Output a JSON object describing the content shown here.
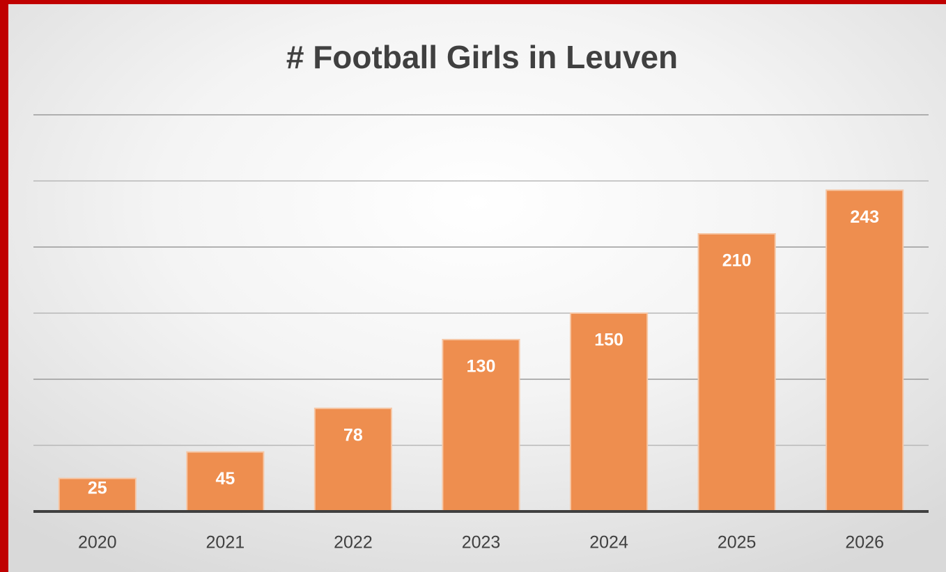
{
  "chart_data": {
    "type": "bar",
    "title": "# Football Girls in Leuven",
    "categories": [
      "2020",
      "2021",
      "2022",
      "2023",
      "2024",
      "2025",
      "2026"
    ],
    "values": [
      25,
      45,
      78,
      130,
      150,
      210,
      243
    ],
    "color": "#ee8e4f",
    "ylim": [
      0,
      300
    ],
    "yticks": [
      0,
      50,
      100,
      150,
      200,
      250,
      300
    ],
    "grid": true
  }
}
